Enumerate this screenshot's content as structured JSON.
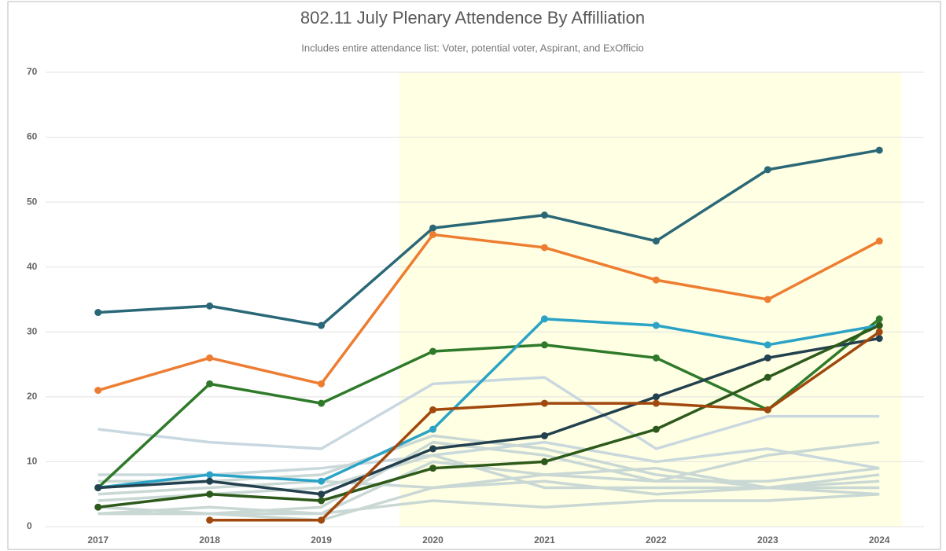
{
  "chart_data": {
    "type": "line",
    "title": "802.11 July Plenary Attendence By Affilliation",
    "subtitle": "Includes entire attendance list: Voter, potential voter, Aspirant, and ExOfficio",
    "x": [
      2017,
      2018,
      2019,
      2020,
      2021,
      2022,
      2023,
      2024
    ],
    "xlim": [
      2016.53,
      2024.4
    ],
    "xticks": [
      2017,
      2018,
      2019,
      2020,
      2021,
      2022,
      2023,
      2024
    ],
    "ylim": [
      0,
      70
    ],
    "yticks": [
      0,
      10,
      20,
      30,
      40,
      50,
      60,
      70
    ],
    "grid": true,
    "highlight_range": [
      2019.7,
      2024.2
    ],
    "highlight_color": "#ffffe3",
    "series": [
      {
        "color": "#c9d8e0",
        "markers": false,
        "values": [
          15,
          13,
          12,
          22,
          23,
          12,
          17,
          17
        ]
      },
      {
        "color": "#c9d8dc",
        "markers": false,
        "values": [
          8,
          8,
          9,
          11,
          13,
          10,
          12,
          9
        ]
      },
      {
        "color": "#c9d8d4",
        "markers": false,
        "values": [
          2,
          2,
          3,
          13,
          11,
          7,
          11,
          13
        ]
      },
      {
        "color": "#c9d8d4",
        "markers": false,
        "values": [
          5,
          6,
          7,
          6,
          8,
          7,
          7,
          9
        ]
      },
      {
        "color": "#c9d8d4",
        "markers": false,
        "values": [
          4,
          5,
          6,
          11,
          6,
          6,
          6,
          6
        ]
      },
      {
        "color": "#c9d8d4",
        "markers": false,
        "values": [
          2,
          3,
          2,
          10,
          8,
          9,
          6,
          5
        ]
      },
      {
        "color": "#c9d8d4",
        "markers": false,
        "values": [
          7,
          7,
          8,
          14,
          12,
          8,
          6,
          8
        ]
      },
      {
        "color": "#c9d8d4",
        "markers": false,
        "values": [
          3,
          2,
          2,
          4,
          3,
          4,
          4,
          5
        ]
      },
      {
        "color": "#c9d8d4",
        "markers": false,
        "values": [
          2,
          2,
          1,
          6,
          7,
          5,
          6,
          7
        ]
      },
      {
        "color": "#2a6878",
        "markers": true,
        "values": [
          33,
          34,
          31,
          46,
          48,
          44,
          55,
          58
        ]
      },
      {
        "color": "#ed7d31",
        "markers": true,
        "values": [
          21,
          26,
          22,
          45,
          43,
          38,
          35,
          44
        ]
      },
      {
        "color": "#2f7a2a",
        "markers": true,
        "values": [
          6,
          22,
          19,
          27,
          28,
          26,
          18,
          32
        ]
      },
      {
        "color": "#2ba3c6",
        "markers": true,
        "values": [
          6,
          8,
          7,
          15,
          32,
          31,
          28,
          31
        ]
      },
      {
        "color": "#23404f",
        "markers": true,
        "values": [
          6,
          7,
          5,
          12,
          14,
          20,
          26,
          29
        ]
      },
      {
        "color": "#2d5a1b",
        "markers": true,
        "values": [
          3,
          5,
          4,
          9,
          10,
          15,
          23,
          31
        ]
      },
      {
        "color": "#a0480e",
        "markers": true,
        "values": [
          null,
          1,
          1,
          18,
          19,
          19,
          18,
          30
        ]
      }
    ]
  }
}
